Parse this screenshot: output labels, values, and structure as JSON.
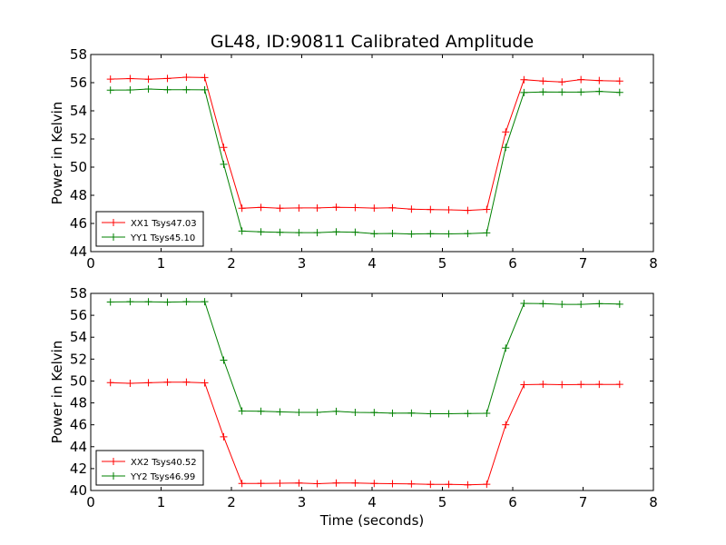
{
  "chart_data": {
    "title": "GL48, ID:90811 Calibrated Amplitude",
    "xlabel": "Time (seconds)",
    "type": "line",
    "panels": [
      {
        "ylabel": "Power in Kelvin",
        "xlim": [
          0,
          8
        ],
        "ylim": [
          44,
          58
        ],
        "xticks": [
          "0",
          "1",
          "2",
          "3",
          "4",
          "5",
          "6",
          "7",
          "8"
        ],
        "yticks": [
          "44",
          "46",
          "48",
          "50",
          "52",
          "54",
          "56",
          "58"
        ],
        "legend_position": "lower-left",
        "x": [
          0.28,
          0.56,
          0.82,
          1.09,
          1.36,
          1.62,
          1.89,
          2.15,
          2.42,
          2.69,
          2.96,
          3.22,
          3.49,
          3.76,
          4.03,
          4.29,
          4.56,
          4.83,
          5.09,
          5.36,
          5.63,
          5.9,
          6.16,
          6.43,
          6.7,
          6.97,
          7.23,
          7.52
        ],
        "series": [
          {
            "name": "XX1 Tsys47.03",
            "color": "#ff0000",
            "values": [
              56.25,
              56.29,
              56.24,
              56.3,
              56.39,
              56.36,
              51.4,
              47.08,
              47.14,
              47.08,
              47.1,
              47.1,
              47.15,
              47.13,
              47.09,
              47.11,
              47.02,
              46.99,
              46.97,
              46.93,
              47.0,
              52.5,
              56.21,
              56.11,
              56.05,
              56.22,
              56.15,
              56.11
            ]
          },
          {
            "name": "YY1 Tsys45.10",
            "color": "#008000",
            "values": [
              55.47,
              55.48,
              55.55,
              55.5,
              55.5,
              55.49,
              50.2,
              45.46,
              45.4,
              45.37,
              45.35,
              45.35,
              45.4,
              45.38,
              45.27,
              45.29,
              45.25,
              45.27,
              45.26,
              45.28,
              45.33,
              51.4,
              55.3,
              55.34,
              55.33,
              55.33,
              55.38,
              55.31
            ]
          }
        ]
      },
      {
        "ylabel": "Power in Kelvin",
        "xlim": [
          0,
          8
        ],
        "ylim": [
          40,
          58
        ],
        "xticks": [
          "0",
          "1",
          "2",
          "3",
          "4",
          "5",
          "6",
          "7",
          "8"
        ],
        "yticks": [
          "40",
          "42",
          "44",
          "46",
          "48",
          "50",
          "52",
          "54",
          "56",
          "58"
        ],
        "legend_position": "lower-left",
        "x": [
          0.28,
          0.56,
          0.82,
          1.09,
          1.36,
          1.62,
          1.89,
          2.15,
          2.42,
          2.69,
          2.96,
          3.22,
          3.49,
          3.76,
          4.03,
          4.29,
          4.56,
          4.83,
          5.09,
          5.36,
          5.63,
          5.9,
          6.16,
          6.43,
          6.7,
          6.97,
          7.23,
          7.52
        ],
        "series": [
          {
            "name": "XX2 Tsys40.52",
            "color": "#ff0000",
            "values": [
              49.85,
              49.79,
              49.84,
              49.89,
              49.9,
              49.83,
              44.9,
              40.64,
              40.65,
              40.66,
              40.68,
              40.62,
              40.68,
              40.68,
              40.64,
              40.62,
              40.6,
              40.56,
              40.56,
              40.52,
              40.57,
              46.0,
              49.66,
              49.7,
              49.66,
              49.68,
              49.69,
              49.69
            ]
          },
          {
            "name": "YY2 Tsys46.99",
            "color": "#008000",
            "values": [
              57.21,
              57.24,
              57.23,
              57.2,
              57.24,
              57.24,
              51.9,
              47.26,
              47.24,
              47.18,
              47.13,
              47.13,
              47.23,
              47.13,
              47.12,
              47.06,
              47.07,
              47.01,
              47.01,
              47.03,
              47.05,
              53.0,
              57.09,
              57.06,
              57.0,
              57.0,
              57.06,
              57.02
            ]
          }
        ]
      }
    ]
  }
}
